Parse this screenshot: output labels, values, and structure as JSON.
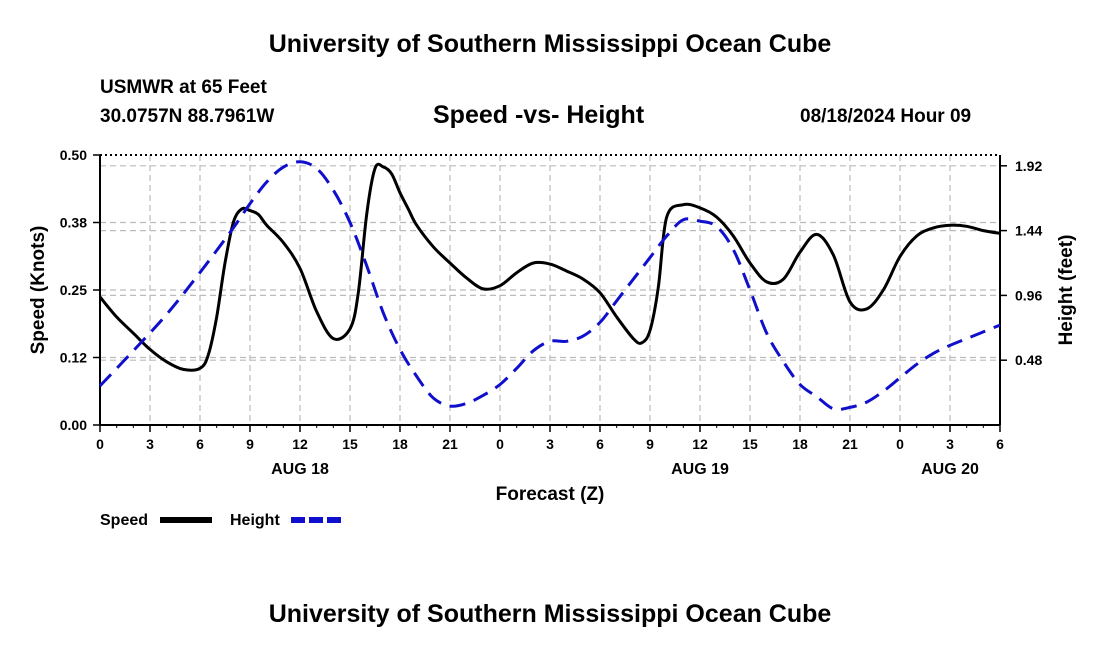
{
  "header": {
    "title": "University of Southern Mississippi Ocean Cube",
    "station": "USMWR at 65 Feet",
    "coords": "30.0757N  88.7961W",
    "chart_title": "Speed -vs- Height",
    "datetime": "08/18/2024 Hour 09"
  },
  "footer": {
    "title": "University of Southern Mississippi Ocean Cube"
  },
  "colors": {
    "speed": "#000000",
    "height": "#1010cc",
    "grid": "#bbbbbb"
  },
  "chart_data": {
    "type": "line",
    "title": "Speed -vs- Height",
    "xlabel": "Forecast (Z)",
    "ylabel_left": "Speed (Knots)",
    "ylabel_right": "Height (feet)",
    "x_range": [
      0,
      54
    ],
    "x_ticks": [
      0,
      3,
      6,
      9,
      12,
      15,
      18,
      21,
      24,
      27,
      30,
      33,
      36,
      39,
      42,
      45,
      48,
      51,
      54
    ],
    "x_tick_labels": [
      "0",
      "3",
      "6",
      "9",
      "12",
      "15",
      "18",
      "21",
      "0",
      "3",
      "6",
      "9",
      "12",
      "15",
      "18",
      "21",
      "0",
      "3",
      "6"
    ],
    "date_labels": [
      {
        "x": 12,
        "label": "AUG 18"
      },
      {
        "x": 36,
        "label": "AUG 19"
      },
      {
        "x": 51,
        "label": "AUG 20"
      }
    ],
    "y_left": {
      "range": [
        0,
        0.5
      ],
      "ticks": [
        0,
        0.125,
        0.25,
        0.375,
        0.5
      ],
      "tick_labels": [
        "0.00",
        "0.12",
        "0.25",
        "0.38",
        "0.50"
      ]
    },
    "y_right": {
      "range": [
        0,
        2.0
      ],
      "ticks": [
        0.48,
        0.96,
        1.44,
        1.92
      ],
      "tick_labels": [
        "0.48",
        "0.96",
        "1.44",
        "1.92"
      ]
    },
    "legend": [
      "Speed",
      "Height"
    ],
    "legend_position": "bottom-left",
    "grid": true,
    "series": [
      {
        "name": "Speed",
        "axis": "left",
        "style": "solid",
        "x": [
          0,
          1,
          2,
          3,
          4,
          5,
          6,
          6.5,
          7,
          7.5,
          8,
          8.5,
          9,
          9.5,
          10,
          11,
          12,
          13,
          14,
          15,
          15.5,
          16,
          16.5,
          17,
          17.5,
          18,
          18.5,
          19,
          20,
          21,
          22,
          23,
          24,
          25,
          26,
          27,
          28,
          29,
          30,
          31,
          32,
          32.5,
          33,
          33.5,
          34,
          35,
          36,
          37,
          38,
          39,
          40,
          41,
          42,
          43,
          44,
          45,
          46,
          47,
          48,
          49,
          50,
          51,
          52,
          53,
          54
        ],
        "values": [
          0.237,
          0.2,
          0.17,
          0.14,
          0.117,
          0.103,
          0.105,
          0.13,
          0.2,
          0.3,
          0.375,
          0.4,
          0.397,
          0.39,
          0.37,
          0.338,
          0.29,
          0.21,
          0.16,
          0.178,
          0.245,
          0.39,
          0.475,
          0.478,
          0.465,
          0.43,
          0.4,
          0.37,
          0.33,
          0.3,
          0.272,
          0.252,
          0.258,
          0.282,
          0.3,
          0.298,
          0.285,
          0.27,
          0.245,
          0.2,
          0.16,
          0.152,
          0.175,
          0.255,
          0.385,
          0.408,
          0.402,
          0.385,
          0.35,
          0.3,
          0.265,
          0.27,
          0.32,
          0.353,
          0.315,
          0.228,
          0.215,
          0.25,
          0.312,
          0.35,
          0.365,
          0.37,
          0.368,
          0.36,
          0.355
        ]
      },
      {
        "name": "Height",
        "axis": "right",
        "style": "dashed",
        "x": [
          0,
          2,
          4,
          6,
          8,
          9,
          10,
          11,
          12,
          13,
          14,
          15,
          16,
          17,
          18,
          19,
          20,
          21,
          22,
          23,
          24,
          25,
          26,
          27,
          28,
          29,
          30,
          31,
          32,
          33,
          34,
          35,
          36,
          37,
          38,
          39,
          40,
          41,
          42,
          43,
          44,
          45,
          46,
          47,
          48,
          49,
          50,
          51,
          52,
          53,
          54
        ],
        "values": [
          0.29,
          0.55,
          0.82,
          1.13,
          1.46,
          1.64,
          1.8,
          1.91,
          1.95,
          1.9,
          1.74,
          1.5,
          1.18,
          0.83,
          0.56,
          0.36,
          0.2,
          0.14,
          0.16,
          0.22,
          0.3,
          0.42,
          0.55,
          0.62,
          0.62,
          0.66,
          0.76,
          0.92,
          1.08,
          1.24,
          1.4,
          1.52,
          1.51,
          1.47,
          1.3,
          1.0,
          0.68,
          0.47,
          0.3,
          0.21,
          0.12,
          0.13,
          0.17,
          0.25,
          0.35,
          0.45,
          0.53,
          0.59,
          0.64,
          0.69,
          0.74
        ]
      }
    ]
  }
}
